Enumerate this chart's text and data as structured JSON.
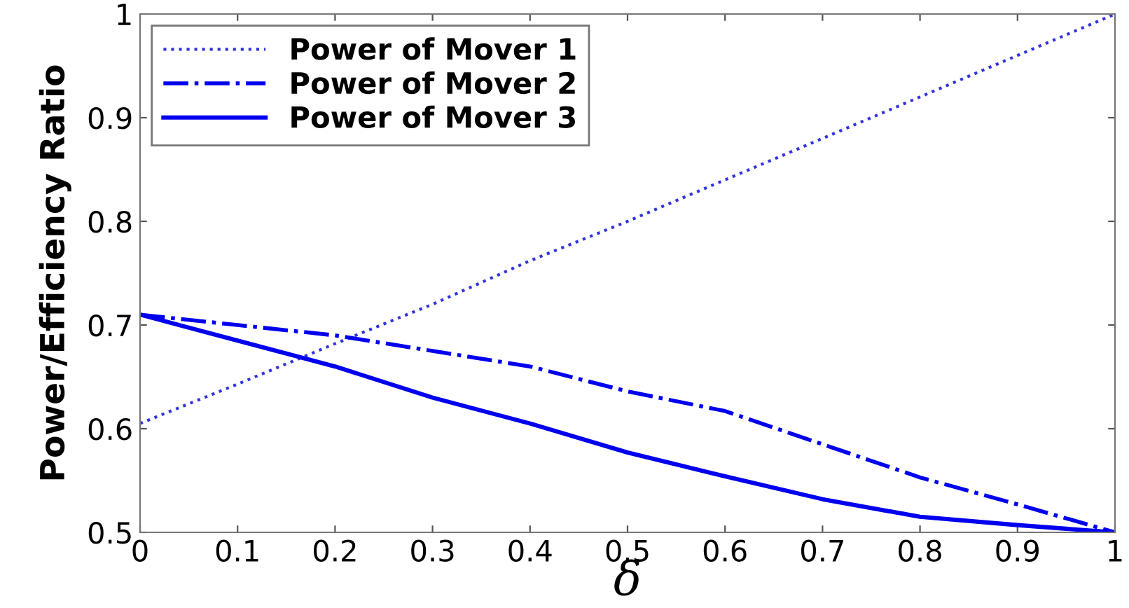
{
  "chart_data": {
    "type": "line",
    "xlabel": "δ",
    "ylabel": "Power/Efficiency Ratio",
    "x": [
      0,
      0.1,
      0.2,
      0.3,
      0.4,
      0.5,
      0.6,
      0.7,
      0.8,
      0.9,
      1
    ],
    "xlim": [
      0,
      1
    ],
    "xticks": [
      0,
      0.1,
      0.2,
      0.3,
      0.4,
      0.5,
      0.6,
      0.7,
      0.8,
      0.9,
      1
    ],
    "ylim": [
      0.5,
      1
    ],
    "yticks": [
      0.5,
      0.6,
      0.7,
      0.8,
      0.9,
      1
    ],
    "grid": false,
    "legend": "top left",
    "series": [
      {
        "name": "Power of Mover 1",
        "color": "#3333dd",
        "line_style": "dotted",
        "values": [
          0.605,
          0.643,
          0.682,
          0.72,
          0.762,
          0.8,
          0.84,
          0.88,
          0.92,
          0.96,
          1.0
        ]
      },
      {
        "name": "Power of Mover 2",
        "color": "#0000ee",
        "line_style": "dashdot",
        "values": [
          0.71,
          0.7,
          0.69,
          0.675,
          0.66,
          0.636,
          0.617,
          0.585,
          0.553,
          0.527,
          0.5
        ]
      },
      {
        "name": "Power of Mover 3",
        "color": "#0000ee",
        "line_style": "solid",
        "values": [
          0.71,
          0.685,
          0.66,
          0.63,
          0.605,
          0.577,
          0.554,
          0.532,
          0.515,
          0.507,
          0.5
        ]
      }
    ]
  }
}
